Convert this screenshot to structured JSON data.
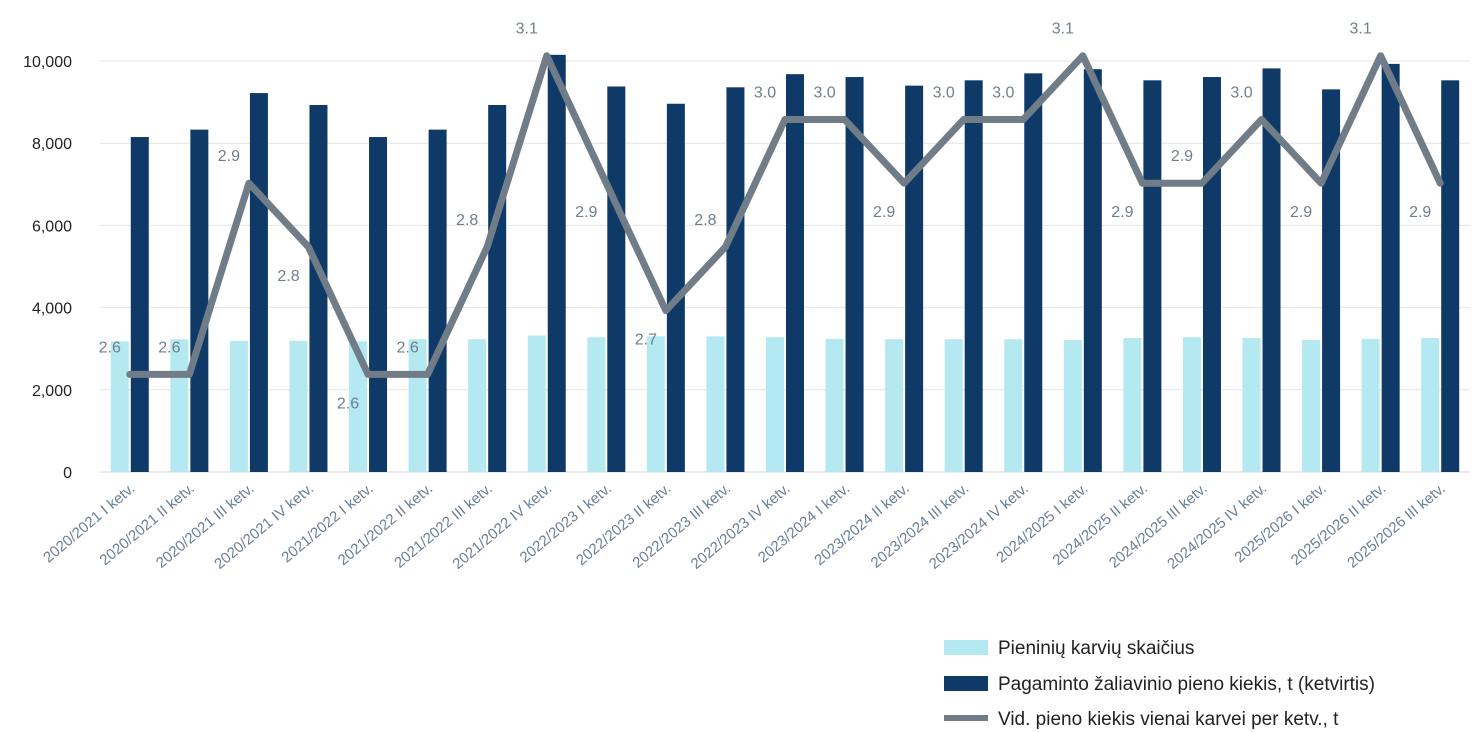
{
  "chart_data": {
    "type": "bar",
    "categories": [
      "2020/2021 I ketv.",
      "2020/2021 II ketv.",
      "2020/2021 III ketv.",
      "2020/2021 IV ketv.",
      "2021/2022 I ketv.",
      "2021/2022 II ketv.",
      "2021/2022 III ketv.",
      "2021/2022 IV ketv.",
      "2022/2023 I ketv.",
      "2022/2023 II ketv.",
      "2022/2023 III ketv.",
      "2022/2023 IV ketv.",
      "2023/2024 I ketv.",
      "2023/2024 II ketv.",
      "2023/2024 III ketv.",
      "2023/2024 IV ketv.",
      "2024/2025 I ketv.",
      "2024/2025 II ketv.",
      "2024/2025 III ketv.",
      "2024/2025 IV ketv.",
      "2025/2026 I ketv.",
      "2025/2026 II ketv.",
      "2025/2026 III ketv."
    ],
    "series": [
      {
        "name": "Pieninių karvių skaičius",
        "type": "bar",
        "color": "#b4e9f1",
        "values": [
          3180,
          3230,
          3190,
          3190,
          3180,
          3230,
          3230,
          3320,
          3280,
          3300,
          3300,
          3280,
          3240,
          3230,
          3230,
          3230,
          3210,
          3260,
          3280,
          3260,
          3210,
          3240,
          3260
        ]
      },
      {
        "name": "Pagaminto žaliavinio pieno kiekis, t (ketvirtis)",
        "type": "bar",
        "color": "#0f3a68",
        "values": [
          8150,
          8330,
          9220,
          8930,
          8150,
          8330,
          8930,
          10150,
          9380,
          8960,
          9360,
          9680,
          9610,
          9400,
          9530,
          9700,
          9800,
          9530,
          9610,
          9820,
          9310,
          9930,
          9530
        ]
      },
      {
        "name": "Vid. pieno kiekis vienai karvei per ketv., t",
        "type": "line",
        "color": "#707d88",
        "values": [
          2.6,
          2.6,
          2.9,
          2.8,
          2.6,
          2.6,
          2.8,
          3.1,
          2.9,
          2.7,
          2.8,
          3.0,
          3.0,
          2.9,
          3.0,
          3.0,
          3.1,
          2.9,
          2.9,
          3.0,
          2.9,
          3.1,
          2.9
        ],
        "labels": [
          "2.6",
          "2.6",
          "2.9",
          "2.8",
          "2.6",
          "2.6",
          "2.8",
          "3.1",
          "2.9",
          "2.7",
          "2.8",
          "3.0",
          "3.0",
          "2.9",
          "3.0",
          "3.0",
          "3.1",
          "2.9",
          "2.9",
          "3.0",
          "2.9",
          "3.1",
          "2.9"
        ]
      }
    ],
    "yticks": [
      "0",
      "2,000",
      "4,000",
      "6,000",
      "8,000",
      "10,000"
    ],
    "ylim": [
      0,
      10000
    ],
    "grid": true,
    "legend_position": "bottom-right"
  }
}
